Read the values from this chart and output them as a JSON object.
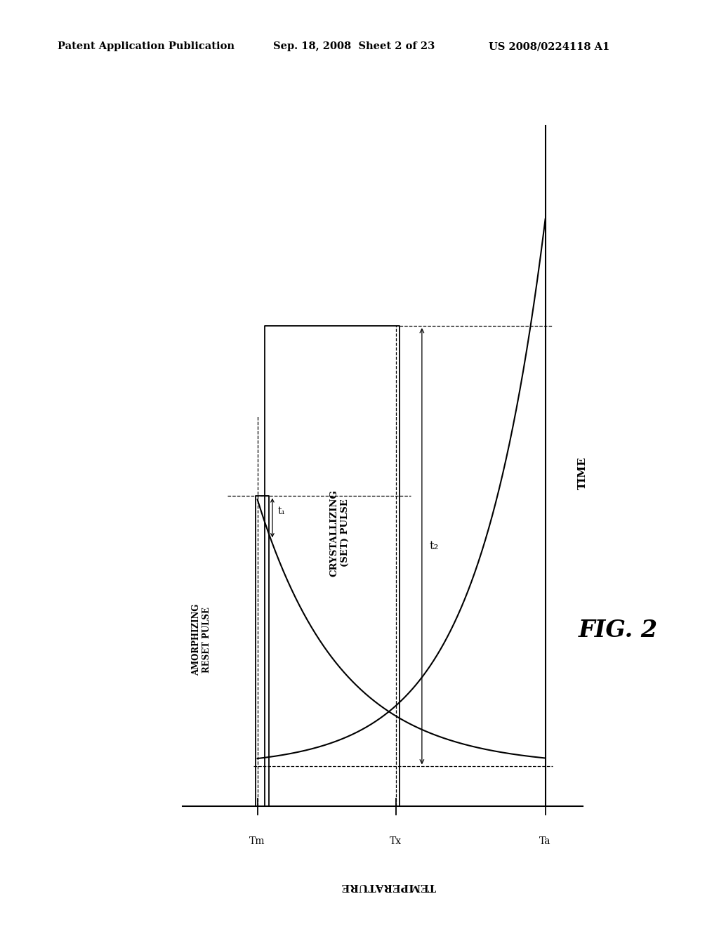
{
  "bg_color": "#ffffff",
  "header_left": "Patent Application Publication",
  "header_mid": "Sep. 18, 2008  Sheet 2 of 23",
  "header_right": "US 2008/0224118 A1",
  "fig_label": "FIG. 2",
  "x_axis_label": "TEMPERATURE",
  "y_axis_label": "TIME",
  "x_ticks": [
    "Tm",
    "Tx",
    "Ta"
  ],
  "x_tick_positions": [
    0.15,
    0.52,
    0.92
  ],
  "amorphizing_label": "AMORPHIZING\nRESET PULSE",
  "crystallizing_label": "CRYSTALLIZING\n(SET) PULSE",
  "t1_label": "t₁",
  "t2_label": "t₂"
}
